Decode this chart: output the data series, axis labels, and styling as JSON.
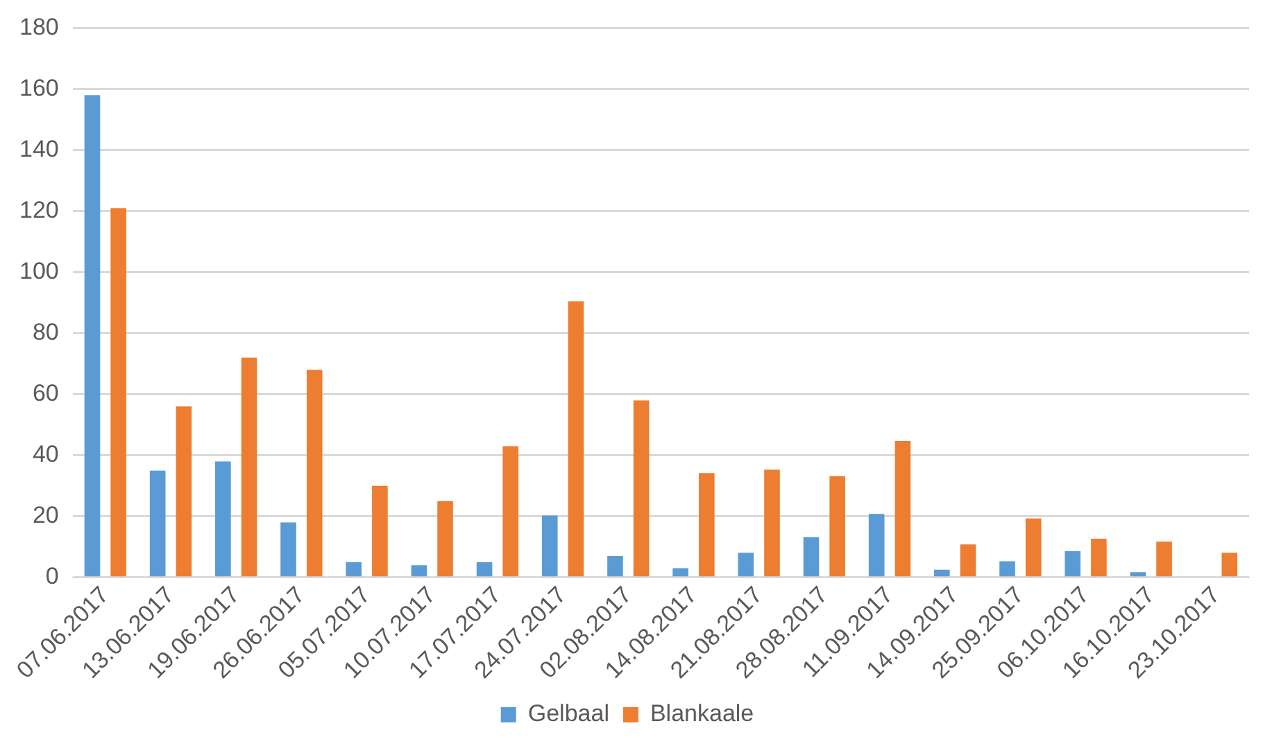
{
  "chart_data": {
    "type": "bar",
    "categories": [
      "07.06.2017",
      "13.06.2017",
      "19.06.2017",
      "26.06.2017",
      "05.07.2017",
      "10.07.2017",
      "17.07.2017",
      "24.07.2017",
      "02.08.2017",
      "14.08.2017",
      "21.08.2017",
      "28.08.2017",
      "11.09.2017",
      "14.09.2017",
      "25.09.2017",
      "06.10.2017",
      "16.10.2017",
      "23.10.2017"
    ],
    "series": [
      {
        "name": "Gelbaal",
        "color": "#5b9bd5",
        "values": [
          158,
          35,
          38,
          18,
          5,
          4,
          5,
          20.3,
          7,
          3,
          8.1,
          13.2,
          20.8,
          2.5,
          5.3,
          8.6,
          1.7,
          0
        ]
      },
      {
        "name": "Blankaale",
        "color": "#ed7d31",
        "values": [
          121,
          56,
          72,
          68,
          30,
          25,
          43,
          90.5,
          58,
          34.2,
          35.3,
          33.2,
          44.7,
          10.8,
          19.3,
          12.7,
          11.7,
          8.1
        ]
      }
    ],
    "ylim": [
      0,
      180
    ],
    "yticks": [
      0,
      20,
      40,
      60,
      80,
      100,
      120,
      140,
      160,
      180
    ],
    "grid": "y",
    "legend": "bottom"
  }
}
